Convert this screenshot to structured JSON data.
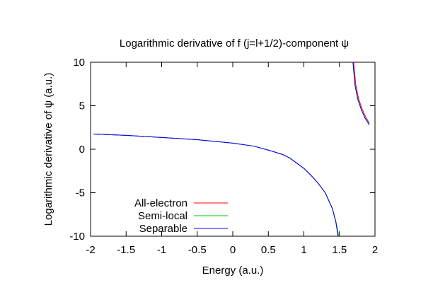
{
  "chart_data": {
    "type": "line",
    "title": "Logarithmic derivative of f (j=l+1/2)-component ψ",
    "xlabel": "Energy (a.u.)",
    "ylabel": "Logarithmic derivative of ψ (a.u.)",
    "xlim": [
      -2,
      2
    ],
    "ylim": [
      -10,
      10
    ],
    "xticks": [
      -2,
      -1.5,
      -1,
      -0.5,
      0,
      0.5,
      1,
      1.5,
      2
    ],
    "xtick_labels": [
      "-2",
      "-1.5",
      "-1",
      "-0.5",
      "0",
      "0.5",
      "1",
      "1.5",
      "2"
    ],
    "yticks": [
      -10,
      -5,
      0,
      5,
      10
    ],
    "ytick_labels": [
      "-10",
      "-5",
      "0",
      "5",
      "10"
    ],
    "grid": false,
    "legend_position": "bottom-left",
    "series": [
      {
        "name": "All-electron",
        "color": "#ff0000",
        "points": [
          [
            -1.96,
            1.75
          ],
          [
            -1.5,
            1.6
          ],
          [
            -1.0,
            1.35
          ],
          [
            -0.5,
            1.1
          ],
          [
            0.0,
            0.7
          ],
          [
            0.3,
            0.35
          ],
          [
            0.5,
            -0.1
          ],
          [
            0.7,
            -0.6
          ],
          [
            0.8,
            -1.0
          ],
          [
            0.9,
            -1.6
          ],
          [
            1.0,
            -2.2
          ],
          [
            1.1,
            -3.0
          ],
          [
            1.2,
            -3.9
          ],
          [
            1.3,
            -5.0
          ],
          [
            1.4,
            -6.8
          ],
          [
            1.45,
            -8.3
          ],
          [
            1.49,
            -10.0
          ],
          null,
          [
            1.7,
            10.0
          ],
          [
            1.73,
            7.4
          ],
          [
            1.77,
            5.8
          ],
          [
            1.82,
            4.6
          ],
          [
            1.87,
            3.7
          ],
          [
            1.92,
            3.0
          ]
        ]
      },
      {
        "name": "Semi-local",
        "color": "#00c000",
        "points": [
          [
            -1.96,
            1.75
          ],
          [
            -1.5,
            1.6
          ],
          [
            -1.0,
            1.35
          ],
          [
            -0.5,
            1.1
          ],
          [
            0.0,
            0.7
          ],
          [
            0.3,
            0.35
          ],
          [
            0.5,
            -0.1
          ],
          [
            0.7,
            -0.6
          ],
          [
            0.8,
            -1.0
          ],
          [
            0.9,
            -1.6
          ],
          [
            1.0,
            -2.2
          ],
          [
            1.1,
            -3.0
          ],
          [
            1.2,
            -3.9
          ],
          [
            1.3,
            -5.0
          ],
          [
            1.4,
            -6.8
          ],
          [
            1.45,
            -8.3
          ],
          [
            1.49,
            -10.0
          ],
          null,
          [
            1.69,
            10.0
          ],
          [
            1.72,
            7.3
          ],
          [
            1.76,
            5.7
          ],
          [
            1.81,
            4.5
          ],
          [
            1.86,
            3.6
          ],
          [
            1.92,
            2.8
          ]
        ]
      },
      {
        "name": "Separable",
        "color": "#0000ff",
        "points": [
          [
            -1.96,
            1.75
          ],
          [
            -1.5,
            1.6
          ],
          [
            -1.0,
            1.35
          ],
          [
            -0.5,
            1.1
          ],
          [
            0.0,
            0.7
          ],
          [
            0.3,
            0.35
          ],
          [
            0.5,
            -0.1
          ],
          [
            0.7,
            -0.6
          ],
          [
            0.8,
            -1.0
          ],
          [
            0.9,
            -1.6
          ],
          [
            1.0,
            -2.2
          ],
          [
            1.1,
            -3.0
          ],
          [
            1.2,
            -3.9
          ],
          [
            1.3,
            -5.0
          ],
          [
            1.4,
            -6.8
          ],
          [
            1.45,
            -8.4
          ],
          [
            1.48,
            -10.0
          ],
          null,
          [
            1.69,
            10.0
          ],
          [
            1.72,
            7.3
          ],
          [
            1.76,
            5.7
          ],
          [
            1.81,
            4.5
          ],
          [
            1.86,
            3.6
          ],
          [
            1.92,
            2.8
          ]
        ]
      }
    ]
  }
}
